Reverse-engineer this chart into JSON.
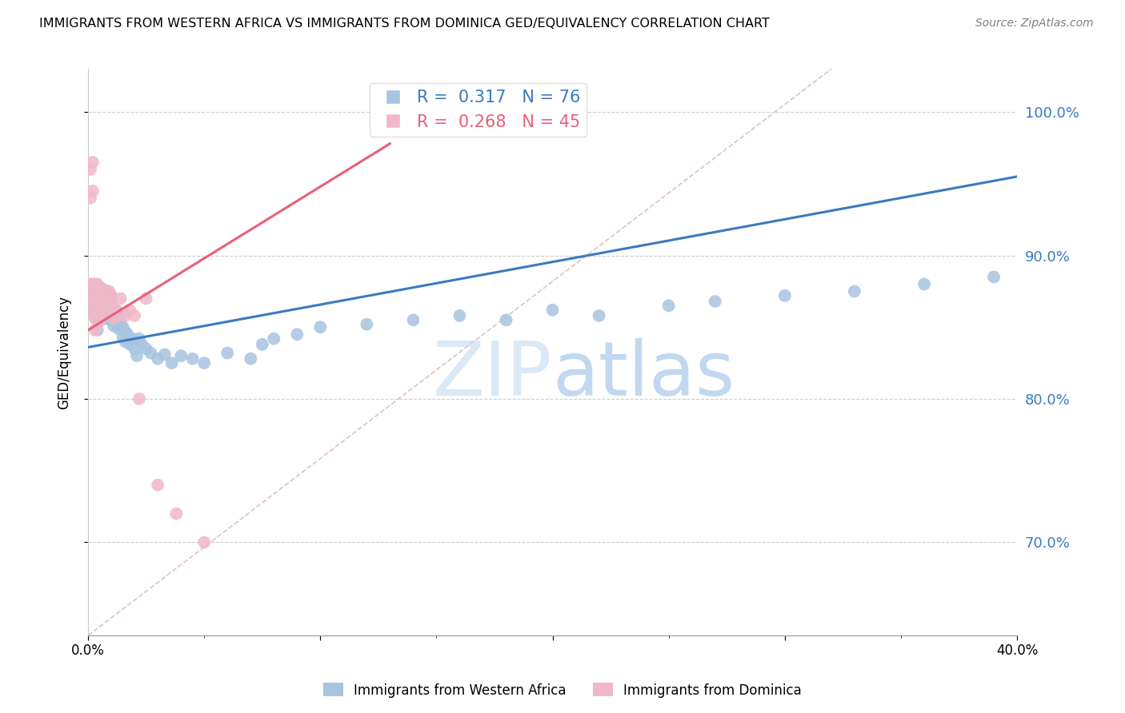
{
  "title": "IMMIGRANTS FROM WESTERN AFRICA VS IMMIGRANTS FROM DOMINICA GED/EQUIVALENCY CORRELATION CHART",
  "source": "Source: ZipAtlas.com",
  "ylabel": "GED/Equivalency",
  "right_yticks": [
    0.7,
    0.8,
    0.9,
    1.0
  ],
  "right_yticklabels": [
    "70.0%",
    "80.0%",
    "90.0%",
    "100.0%"
  ],
  "legend_blue_r_val": "0.317",
  "legend_blue_n_val": "76",
  "legend_pink_r_val": "0.268",
  "legend_pink_n_val": "45",
  "blue_color": "#a8c4e0",
  "blue_line_color": "#3a7abf",
  "pink_color": "#f0b8c8",
  "pink_line_color": "#e8607a",
  "watermark_zip": "ZIP",
  "watermark_atlas": "atlas",
  "blue_label": "Immigrants from Western Africa",
  "pink_label": "Immigrants from Dominica",
  "blue_x": [
    0.001,
    0.001,
    0.002,
    0.002,
    0.002,
    0.003,
    0.003,
    0.003,
    0.003,
    0.004,
    0.004,
    0.004,
    0.004,
    0.004,
    0.005,
    0.005,
    0.005,
    0.005,
    0.006,
    0.006,
    0.006,
    0.007,
    0.007,
    0.007,
    0.008,
    0.008,
    0.008,
    0.009,
    0.009,
    0.01,
    0.01,
    0.01,
    0.011,
    0.011,
    0.012,
    0.012,
    0.013,
    0.013,
    0.014,
    0.015,
    0.015,
    0.016,
    0.016,
    0.017,
    0.018,
    0.019,
    0.02,
    0.021,
    0.022,
    0.023,
    0.025,
    0.027,
    0.03,
    0.033,
    0.036,
    0.04,
    0.045,
    0.05,
    0.06,
    0.07,
    0.075,
    0.08,
    0.09,
    0.1,
    0.12,
    0.14,
    0.16,
    0.18,
    0.2,
    0.22,
    0.25,
    0.27,
    0.3,
    0.33,
    0.36,
    0.39
  ],
  "blue_y": [
    0.878,
    0.872,
    0.875,
    0.868,
    0.862,
    0.88,
    0.873,
    0.865,
    0.858,
    0.875,
    0.87,
    0.862,
    0.855,
    0.848,
    0.878,
    0.87,
    0.863,
    0.855,
    0.872,
    0.865,
    0.858,
    0.876,
    0.868,
    0.861,
    0.87,
    0.863,
    0.856,
    0.874,
    0.866,
    0.869,
    0.862,
    0.855,
    0.858,
    0.851,
    0.862,
    0.855,
    0.856,
    0.849,
    0.853,
    0.85,
    0.843,
    0.847,
    0.84,
    0.845,
    0.838,
    0.842,
    0.835,
    0.83,
    0.842,
    0.838,
    0.835,
    0.832,
    0.828,
    0.831,
    0.825,
    0.83,
    0.828,
    0.825,
    0.832,
    0.828,
    0.838,
    0.842,
    0.845,
    0.85,
    0.852,
    0.855,
    0.858,
    0.855,
    0.862,
    0.858,
    0.865,
    0.868,
    0.872,
    0.875,
    0.88,
    0.885
  ],
  "pink_x": [
    0.001,
    0.001,
    0.001,
    0.001,
    0.002,
    0.002,
    0.002,
    0.002,
    0.002,
    0.003,
    0.003,
    0.003,
    0.003,
    0.003,
    0.004,
    0.004,
    0.004,
    0.004,
    0.005,
    0.005,
    0.005,
    0.005,
    0.006,
    0.006,
    0.006,
    0.007,
    0.007,
    0.008,
    0.008,
    0.009,
    0.009,
    0.01,
    0.01,
    0.011,
    0.012,
    0.013,
    0.014,
    0.016,
    0.018,
    0.02,
    0.022,
    0.025,
    0.03,
    0.038,
    0.05
  ],
  "pink_y": [
    0.88,
    0.96,
    0.94,
    0.87,
    0.965,
    0.945,
    0.88,
    0.87,
    0.862,
    0.875,
    0.87,
    0.863,
    0.856,
    0.848,
    0.88,
    0.872,
    0.864,
    0.856,
    0.878,
    0.87,
    0.862,
    0.854,
    0.876,
    0.868,
    0.86,
    0.873,
    0.865,
    0.87,
    0.862,
    0.875,
    0.867,
    0.872,
    0.864,
    0.856,
    0.862,
    0.858,
    0.87,
    0.858,
    0.862,
    0.858,
    0.8,
    0.87,
    0.74,
    0.72,
    0.7
  ],
  "xmin": 0.0,
  "xmax": 0.4,
  "ymin": 0.635,
  "ymax": 1.03,
  "blue_trend": [
    0.0,
    0.4,
    0.836,
    0.955
  ],
  "pink_trend": [
    0.0,
    0.13,
    0.848,
    0.978
  ],
  "ref_line": [
    0.0,
    0.32,
    0.635,
    1.03
  ],
  "xtick_positions": [
    0.0,
    0.1,
    0.2,
    0.3,
    0.4
  ],
  "xtick_labels_show": [
    "0.0%",
    "",
    "",
    "",
    "40.0%"
  ]
}
